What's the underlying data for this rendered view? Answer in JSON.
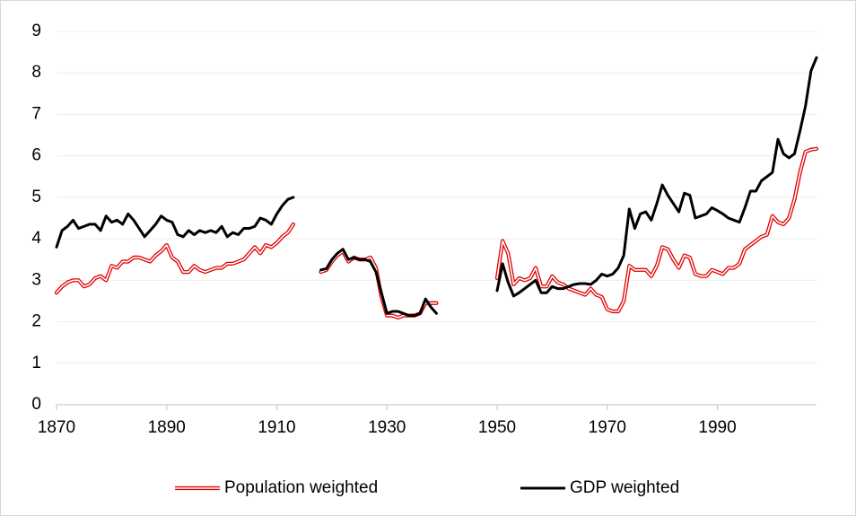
{
  "chart_data": {
    "type": "line",
    "x": [
      1870,
      1871,
      1872,
      1873,
      1874,
      1875,
      1876,
      1877,
      1878,
      1879,
      1880,
      1881,
      1882,
      1883,
      1884,
      1885,
      1886,
      1887,
      1888,
      1889,
      1890,
      1891,
      1892,
      1893,
      1894,
      1895,
      1896,
      1897,
      1898,
      1899,
      1900,
      1901,
      1902,
      1903,
      1904,
      1905,
      1906,
      1907,
      1908,
      1909,
      1910,
      1911,
      1912,
      1913,
      1914,
      1918,
      1919,
      1920,
      1921,
      1922,
      1923,
      1924,
      1925,
      1926,
      1927,
      1928,
      1929,
      1930,
      1931,
      1932,
      1933,
      1934,
      1935,
      1936,
      1937,
      1938,
      1939,
      1940,
      1950,
      1951,
      1952,
      1953,
      1954,
      1955,
      1956,
      1957,
      1958,
      1959,
      1960,
      1961,
      1962,
      1963,
      1964,
      1965,
      1966,
      1967,
      1968,
      1969,
      1970,
      1971,
      1972,
      1973,
      1974,
      1975,
      1976,
      1977,
      1978,
      1979,
      1980,
      1981,
      1982,
      1983,
      1984,
      1985,
      1986,
      1987,
      1988,
      1989,
      1990,
      1991,
      1992,
      1993,
      1994,
      1995,
      1996,
      1997,
      1998,
      1999,
      2000,
      2001,
      2002,
      2003,
      2004,
      2005,
      2006,
      2007,
      2008
    ],
    "series": [
      {
        "name": "Population weighted",
        "color": "#e00000",
        "line_style": "double",
        "values": [
          2.7,
          2.85,
          2.95,
          3.0,
          3.0,
          2.85,
          2.9,
          3.05,
          3.1,
          3.0,
          3.35,
          3.3,
          3.45,
          3.45,
          3.55,
          3.55,
          3.5,
          3.45,
          3.6,
          3.7,
          3.85,
          3.55,
          3.45,
          3.2,
          3.2,
          3.35,
          3.25,
          3.2,
          3.25,
          3.3,
          3.3,
          3.4,
          3.4,
          3.45,
          3.5,
          3.65,
          3.8,
          3.65,
          3.85,
          3.8,
          3.9,
          4.05,
          4.15,
          4.35,
          null,
          3.2,
          3.25,
          3.45,
          3.6,
          3.7,
          3.45,
          3.55,
          3.5,
          3.5,
          3.55,
          3.3,
          2.6,
          2.15,
          2.15,
          2.1,
          2.15,
          2.15,
          2.15,
          2.2,
          2.45,
          2.45,
          2.45,
          null,
          3.05,
          3.95,
          3.65,
          2.9,
          3.05,
          3.0,
          3.05,
          3.3,
          2.85,
          2.85,
          3.1,
          2.95,
          2.9,
          2.8,
          2.75,
          2.7,
          2.65,
          2.8,
          2.65,
          2.6,
          2.3,
          2.25,
          2.25,
          2.5,
          3.35,
          3.25,
          3.25,
          3.25,
          3.1,
          3.35,
          3.8,
          3.75,
          3.5,
          3.3,
          3.6,
          3.55,
          3.15,
          3.1,
          3.1,
          3.25,
          3.2,
          3.15,
          3.3,
          3.3,
          3.4,
          3.75,
          3.85,
          3.95,
          4.05,
          4.1,
          4.55,
          4.4,
          4.35,
          4.5,
          4.95,
          5.6,
          6.1,
          6.15,
          6.17
        ]
      },
      {
        "name": "GDP weighted",
        "color": "#000000",
        "line_style": "solid",
        "values": [
          3.8,
          4.2,
          4.3,
          4.45,
          4.25,
          4.3,
          4.35,
          4.35,
          4.2,
          4.55,
          4.4,
          4.45,
          4.35,
          4.6,
          4.45,
          4.25,
          4.05,
          4.2,
          4.35,
          4.55,
          4.45,
          4.4,
          4.1,
          4.05,
          4.2,
          4.1,
          4.2,
          4.15,
          4.2,
          4.15,
          4.3,
          4.05,
          4.15,
          4.1,
          4.25,
          4.25,
          4.3,
          4.5,
          4.45,
          4.35,
          4.6,
          4.8,
          4.95,
          5.0,
          null,
          3.25,
          3.28,
          3.5,
          3.65,
          3.75,
          3.5,
          3.55,
          3.5,
          3.5,
          3.45,
          3.2,
          2.7,
          2.2,
          2.25,
          2.25,
          2.2,
          2.15,
          2.15,
          2.2,
          2.55,
          2.35,
          2.2,
          null,
          2.75,
          3.4,
          2.95,
          2.62,
          2.7,
          2.8,
          2.9,
          3.0,
          2.7,
          2.7,
          2.85,
          2.8,
          2.8,
          2.85,
          2.9,
          2.92,
          2.92,
          2.9,
          3.0,
          3.15,
          3.1,
          3.15,
          3.3,
          3.6,
          4.72,
          4.25,
          4.6,
          4.65,
          4.45,
          4.85,
          5.3,
          5.05,
          4.85,
          4.65,
          5.1,
          5.05,
          4.5,
          4.55,
          4.6,
          4.75,
          4.68,
          4.6,
          4.5,
          4.45,
          4.4,
          4.75,
          5.15,
          5.15,
          5.4,
          5.5,
          5.6,
          6.4,
          6.05,
          5.95,
          6.05,
          6.6,
          7.2,
          8.05,
          8.37
        ]
      }
    ],
    "xlim": [
      1870,
      2008
    ],
    "xticks": [
      1870,
      1890,
      1910,
      1930,
      1950,
      1970,
      1990
    ],
    "ylim": [
      0,
      9
    ],
    "yticks": [
      0,
      1,
      2,
      3,
      4,
      5,
      6,
      7,
      8,
      9
    ],
    "grid": true,
    "legend": "bottom"
  }
}
